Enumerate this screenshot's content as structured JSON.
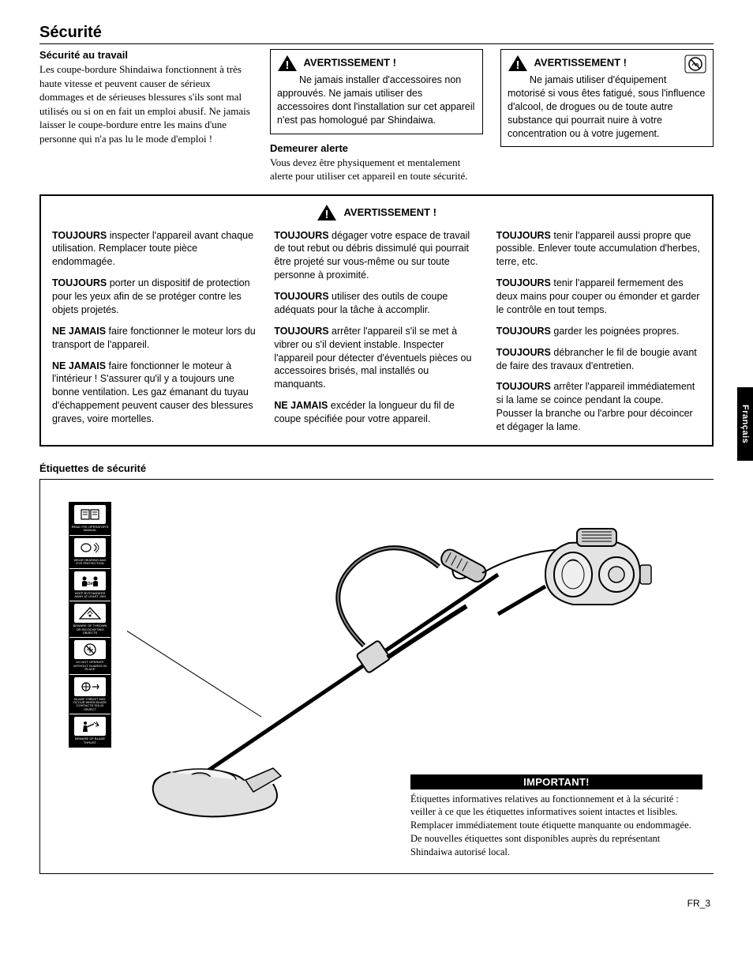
{
  "page": {
    "title": "Sécurité",
    "side_tab": "Français",
    "footer": "FR_3"
  },
  "intro": {
    "subhead": "Sécurité au travail",
    "body": "Les coupe-bordure Shindaiwa fonctionnent à très haute vitesse et peuvent causer de sérieux dommages et de sérieuses blessures s'ils sont mal utilisés ou si on en fait un emploi abusif. Ne jamais laisser le coupe-bordure entre les mains d'une personne qui n'a pas lu le mode d'emploi !"
  },
  "warn1": {
    "head": "AVERTISSEMENT !",
    "body": "Ne jamais installer d'accessoires non approuvés. Ne jamais utiliser des accessoires dont l'installation sur cet appareil n'est pas homologué par Shindaiwa."
  },
  "alert": {
    "subhead": "Demeurer alerte",
    "body": "Vous devez être physiquement et mentalement alerte pour utiliser cet appareil en toute sécurité."
  },
  "warn2": {
    "head": "AVERTISSEMENT !",
    "body": "Ne jamais utiliser d'équipement motorisé si vous êtes fatigué, sous l'influence d'alcool, de drogues ou de toute autre substance qui pourrait nuire à votre concentration ou à votre jugement."
  },
  "ruled": {
    "center_head": "AVERTISSEMENT !",
    "col1": [
      {
        "b": "TOUJOURS",
        "t": " inspecter l'appareil avant chaque utilisation. Remplacer toute pièce endommagée."
      },
      {
        "b": "TOUJOURS",
        "t": " porter un dispositif de protection pour les yeux afin de se protéger contre les objets projetés."
      },
      {
        "b": "NE JAMAIS",
        "t": " faire fonctionner le moteur lors du transport de l'appareil."
      },
      {
        "b": "NE JAMAIS",
        "t": " faire fonctionner le moteur à l'intérieur ! S'assurer qu'il y a toujours une bonne ventilation. Les gaz émanant du tuyau d'échappement peuvent causer des blessures graves, voire mortelles."
      }
    ],
    "col2": [
      {
        "b": "TOUJOURS",
        "t": " dégager votre espace de travail de tout rebut ou débris dissimulé qui pourrait être projeté sur vous-même ou sur toute personne à proximité."
      },
      {
        "b": "TOUJOURS",
        "t": " utiliser des outils de coupe adéquats pour la tâche à accomplir."
      },
      {
        "b": "TOUJOURS",
        "t": " arrêter l'appareil s'il se met à vibrer ou s'il devient instable. Inspecter l'appareil pour détecter d'éventuels pièces ou accessoires brisés, mal installés ou manquants."
      },
      {
        "b": "NE JAMAIS",
        "t": " excéder la longueur du fil de coupe spécifiée pour votre appareil."
      }
    ],
    "col3": [
      {
        "b": "TOUJOURS",
        "t": " tenir l'appareil aussi propre que possible. Enlever toute accumulation d'herbes, terre, etc."
      },
      {
        "b": "TOUJOURS",
        "t": " tenir l'appareil fermement des deux mains pour couper ou émonder et garder le contrôle en tout temps."
      },
      {
        "b": "TOUJOURS",
        "t": " garder les poignées propres."
      },
      {
        "b": "TOUJOURS",
        "t": " débrancher le fil de bougie avant de faire des travaux d'entretien."
      },
      {
        "b": "TOUJOURS",
        "t": " arrêter l'appareil immédiatement si la lame se coince pendant la coupe. Pousser la branche ou l'arbre pour décoincer et dégager la lame."
      }
    ]
  },
  "labels": {
    "title": "Étiquettes de sécurité",
    "important_head": "IMPORTANT!",
    "important_body": "Étiquettes informatives relatives au fonctionnement et à la sécurité : veiller à ce que les étiquettes informatives soient intactes et lisibles. Remplacer immédiatement toute étiquette manquante ou endommagée. De nouvelles étiquettes sont disponibles auprès du représentant Shindaiwa autorisé local."
  }
}
